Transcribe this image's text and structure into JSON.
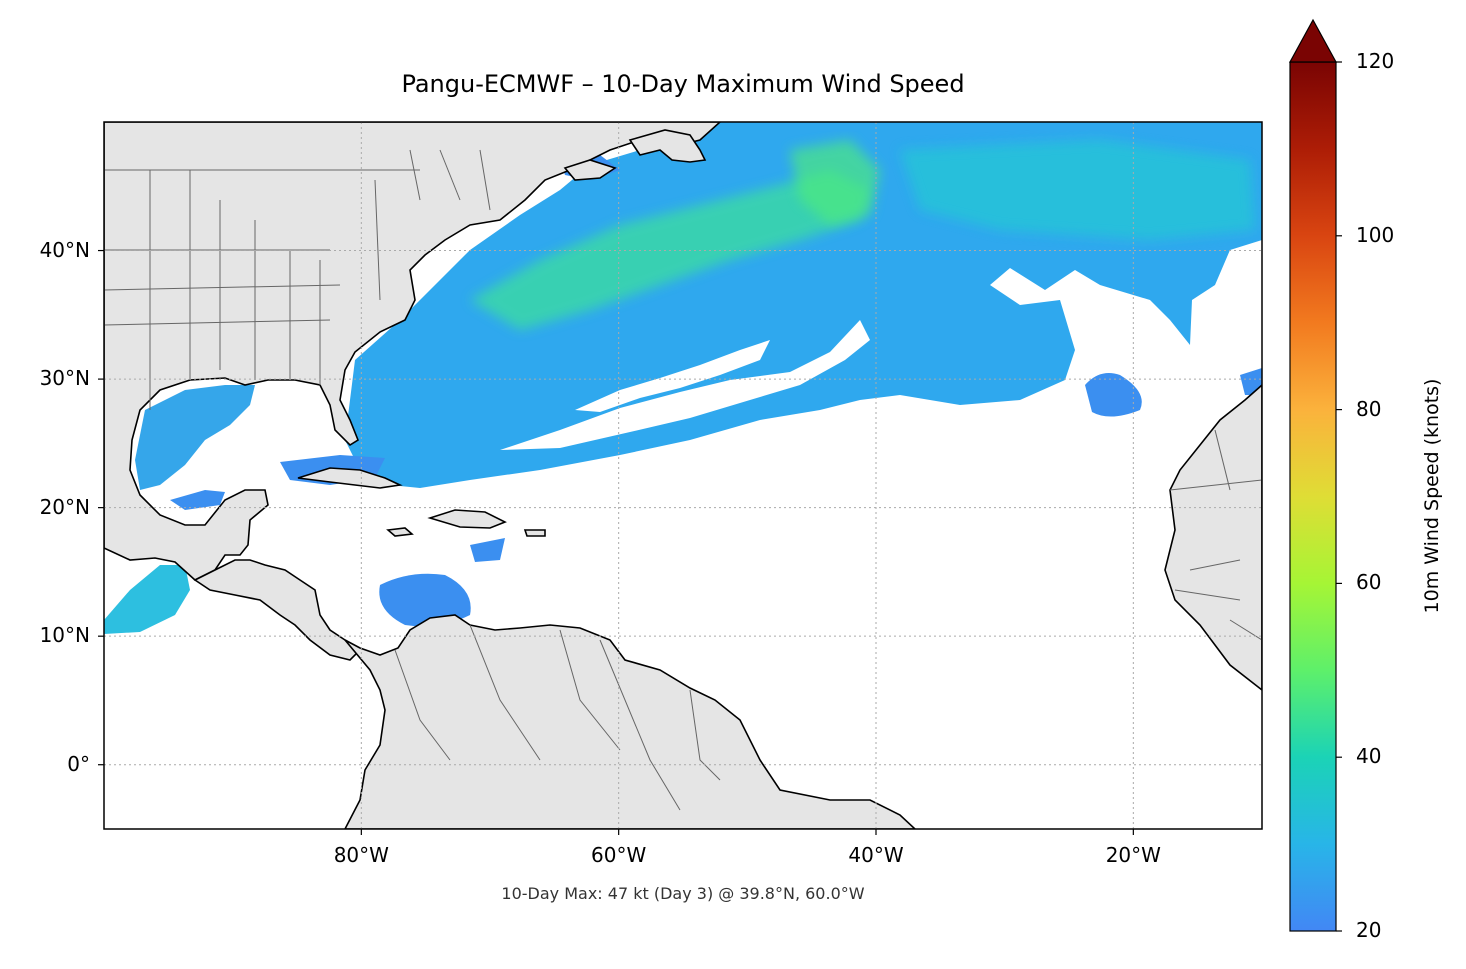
{
  "title": "Pangu-ECMWF – 10-Day Maximum Wind Speed",
  "footnote": "10-Day Max: 47 kt (Day 3) @ 39.8°N, 60.0°W",
  "map": {
    "extent_lon": [
      -100,
      -10
    ],
    "extent_lat": [
      -5,
      50
    ],
    "land_color": "#e5e5e5",
    "coastline_color": "#000000",
    "border_color": "#666666",
    "gridlines": true,
    "lat_ticks": [
      {
        "value": 40,
        "label": "40°N"
      },
      {
        "value": 30,
        "label": "30°N"
      },
      {
        "value": 20,
        "label": "20°N"
      },
      {
        "value": 10,
        "label": "10°N"
      },
      {
        "value": 0,
        "label": "0°"
      }
    ],
    "lon_ticks": [
      {
        "value": -80,
        "label": "80°W"
      },
      {
        "value": -60,
        "label": "60°W"
      },
      {
        "value": -40,
        "label": "40°W"
      },
      {
        "value": -20,
        "label": "20°W"
      }
    ]
  },
  "colorbar": {
    "label": "10m Wind Speed (knots)",
    "min": 20,
    "max": 120,
    "extend": "max",
    "ticks": [
      "120",
      "100",
      "80",
      "60",
      "40",
      "20"
    ],
    "colormap": "turbo",
    "field_display_threshold_kt": 20
  },
  "chart_data": {
    "type": "heatmap",
    "variable": "10-day maximum 10m wind speed",
    "units": "knots",
    "peak": {
      "value": 47,
      "day": 3,
      "lat": 39.8,
      "lon": -60.0
    }
  }
}
